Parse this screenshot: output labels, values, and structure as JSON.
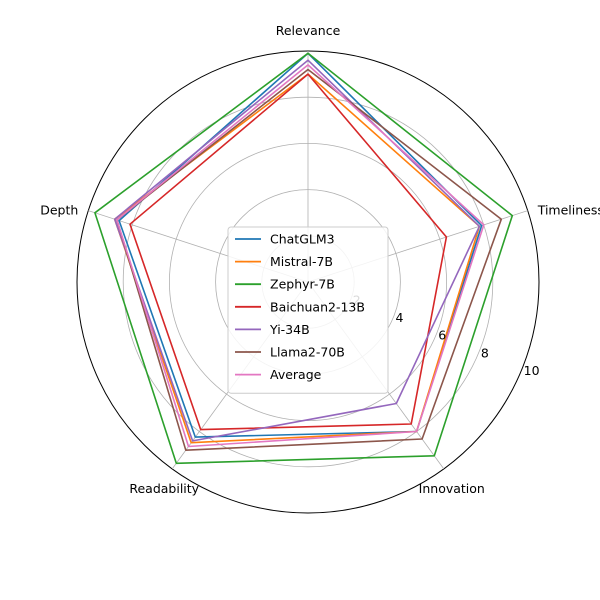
{
  "chart_data": {
    "type": "radar",
    "axes": [
      "Relevance",
      "Timeliness",
      "Innovation",
      "Readability",
      "Depth"
    ],
    "rlim": [
      0,
      10
    ],
    "r_ticks": [
      "2",
      "4",
      "6",
      "8",
      "10"
    ],
    "grid": true,
    "legend_position": "center",
    "series": [
      {
        "name": "ChatGLM3",
        "color": "#1f77b4",
        "values": [
          9.9,
          7.9,
          8.0,
          8.3,
          8.6
        ]
      },
      {
        "name": "Mistral-7B",
        "color": "#ff7f0e",
        "values": [
          9.0,
          7.8,
          8.0,
          8.6,
          8.8
        ]
      },
      {
        "name": "Zephyr-7B",
        "color": "#2ca02c",
        "values": [
          9.9,
          9.3,
          9.3,
          9.7,
          9.7
        ]
      },
      {
        "name": "Baichuan2-13B",
        "color": "#d62728",
        "values": [
          9.0,
          6.3,
          7.6,
          7.9,
          8.1
        ]
      },
      {
        "name": "Yi-34B",
        "color": "#9467bd",
        "values": [
          9.6,
          7.8,
          6.5,
          8.5,
          8.8
        ]
      },
      {
        "name": "Llama2-70B",
        "color": "#8c564b",
        "values": [
          9.2,
          8.8,
          8.4,
          9.0,
          8.7
        ]
      },
      {
        "name": "Average",
        "color": "#e377c2",
        "values": [
          9.4,
          8.0,
          8.0,
          8.8,
          8.7
        ]
      }
    ]
  }
}
